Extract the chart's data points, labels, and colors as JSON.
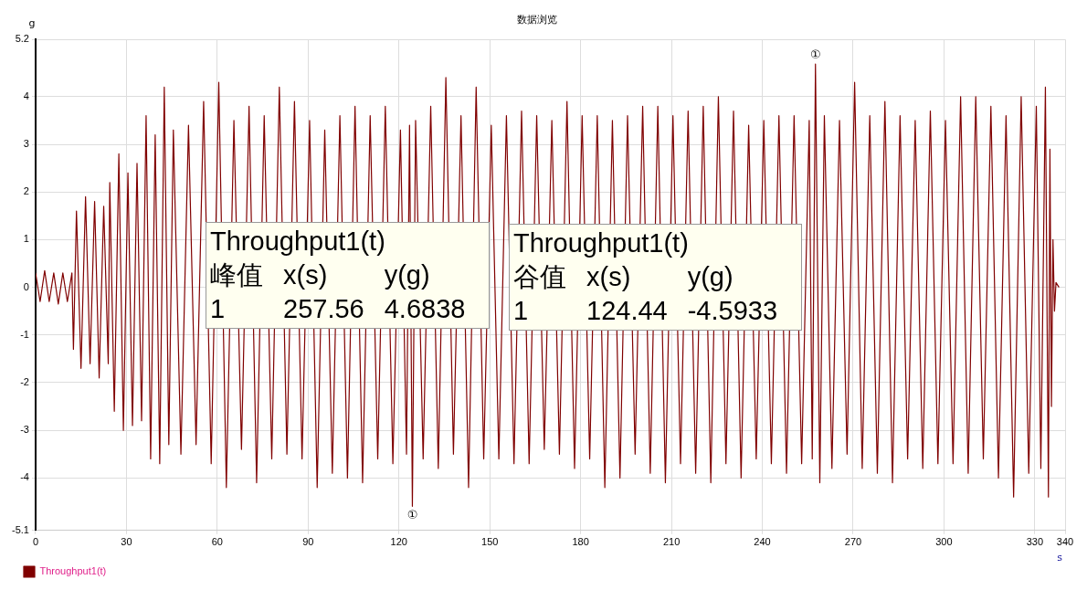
{
  "chart_data": {
    "type": "line",
    "title": "数据浏览",
    "xlabel": "s",
    "ylabel": "g",
    "xlim": [
      0,
      340
    ],
    "xticks": [
      0,
      30,
      60,
      90,
      120,
      150,
      180,
      210,
      240,
      270,
      300,
      330,
      340
    ],
    "ylim": [
      -5.1,
      5.2
    ],
    "yticks": [
      -5.1,
      -4,
      -3,
      -2,
      -1,
      0,
      1,
      2,
      3,
      4,
      5.2
    ],
    "grid": true,
    "legend": "bottom left",
    "marker": "none",
    "line_style": "solid",
    "annotations": [
      "Throughput1(t)\n峰值\tx(s)\ty(g)\n1\t257.56\t4.6838",
      "Throughput1(t)\n谷值\tx(s)\ty(g)\n1\t124.44\t-4.5933",
      {
        "text": "①",
        "x": 257.56,
        "y": 4.6838
      },
      {
        "text": "①",
        "x": 124.44,
        "y": -4.5933
      }
    ],
    "series": [
      {
        "name": "Throughput1(t)",
        "color": "#800000",
        "x": [
          0,
          1.5,
          3,
          4.5,
          6,
          7.5,
          9,
          10.5,
          12,
          12.5,
          13.5,
          15,
          16.5,
          18,
          19.5,
          21,
          22.5,
          24,
          24.5,
          26,
          27.5,
          29,
          30.5,
          32,
          33.5,
          35,
          36.5,
          38,
          39.5,
          41,
          42.5,
          44,
          45.5,
          48,
          50.5,
          53,
          55.5,
          58,
          60.5,
          63,
          65.5,
          68,
          70.5,
          73,
          75.5,
          78,
          80.5,
          83,
          85.5,
          88,
          90.5,
          93,
          95.5,
          98,
          100.5,
          103,
          105.5,
          108,
          110.5,
          113,
          115.5,
          118,
          120.5,
          122.5,
          123.5,
          124.44,
          125.5,
          128,
          130.5,
          133,
          135.5,
          138,
          140.5,
          143,
          145.5,
          148,
          150.5,
          153,
          155.5,
          158,
          160.5,
          163,
          165.5,
          168,
          170.5,
          173,
          175.5,
          178,
          180.5,
          183,
          185.5,
          188,
          190.5,
          193,
          195.5,
          198,
          200.5,
          203,
          205.5,
          208,
          210.5,
          213,
          215.5,
          218,
          220.5,
          223,
          225.5,
          228,
          230.5,
          233,
          235.5,
          238,
          240.5,
          243,
          245.5,
          248,
          250.5,
          253,
          255.5,
          256.5,
          257.56,
          259,
          260.5,
          263,
          265.5,
          268,
          270.5,
          273,
          275.5,
          278,
          280.5,
          283,
          285.5,
          288,
          290.5,
          293,
          295.5,
          298,
          300.5,
          303,
          305.5,
          308,
          310.5,
          313,
          315.5,
          318,
          320.5,
          323,
          325.5,
          328,
          330.5,
          332,
          333.5,
          334.5,
          335,
          335.5,
          336,
          336.5,
          337,
          338
        ],
        "values": [
          0.3,
          -0.3,
          0.35,
          -0.3,
          0.3,
          -0.35,
          0.3,
          -0.3,
          0.3,
          -1.3,
          1.6,
          -1.7,
          1.9,
          -1.6,
          1.8,
          -1.9,
          1.7,
          -1.6,
          2.2,
          -2.6,
          2.8,
          -3.0,
          2.4,
          -2.9,
          2.6,
          -2.8,
          3.6,
          -3.6,
          3.2,
          -3.7,
          4.2,
          -3.3,
          3.3,
          -3.5,
          3.4,
          -3.3,
          3.9,
          -3.7,
          4.3,
          -4.2,
          3.5,
          -3.4,
          3.8,
          -4.1,
          3.6,
          -3.6,
          4.2,
          -3.5,
          3.9,
          -3.6,
          3.5,
          -4.2,
          3.3,
          -3.9,
          3.6,
          -4.0,
          3.8,
          -4.1,
          3.6,
          -3.6,
          3.8,
          -3.7,
          3.3,
          -3.5,
          3.4,
          -4.5933,
          3.5,
          -3.6,
          3.8,
          -3.8,
          4.4,
          -3.5,
          3.6,
          -4.2,
          4.2,
          -3.6,
          3.4,
          -3.6,
          3.6,
          -3.7,
          3.7,
          -3.7,
          3.6,
          -3.4,
          3.5,
          -3.5,
          3.9,
          -3.8,
          3.6,
          -3.6,
          3.6,
          -4.2,
          3.5,
          -4.0,
          3.6,
          -3.5,
          3.8,
          -3.9,
          3.8,
          -4.1,
          3.6,
          -3.7,
          3.7,
          -3.9,
          3.8,
          -4.1,
          4.0,
          -3.7,
          3.7,
          -4.0,
          3.4,
          -3.6,
          3.5,
          -3.7,
          3.6,
          -3.9,
          3.6,
          -3.7,
          3.5,
          -3.6,
          4.6838,
          -4.1,
          3.6,
          -3.8,
          3.5,
          -3.5,
          4.3,
          -3.8,
          3.6,
          -3.9,
          3.9,
          -4.1,
          3.6,
          -3.6,
          3.5,
          -3.8,
          3.7,
          -3.7,
          3.5,
          -3.7,
          4.0,
          -3.9,
          4.0,
          -3.6,
          3.8,
          -4.0,
          3.6,
          -4.4,
          4.0,
          -3.9,
          3.8,
          -3.8,
          4.2,
          -4.4,
          2.9,
          -2.5,
          1.0,
          -0.5,
          0.1,
          0
        ]
      }
    ]
  }
}
